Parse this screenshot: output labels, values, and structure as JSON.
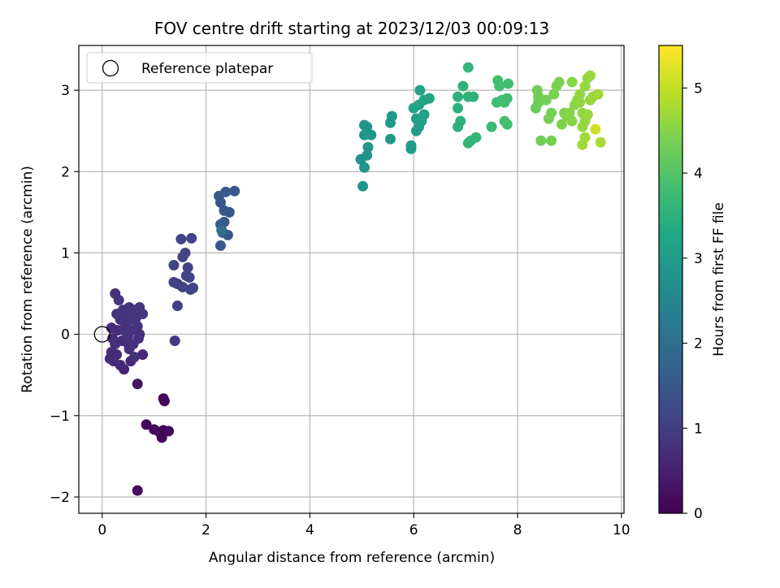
{
  "chart_data": {
    "type": "scatter",
    "title": "FOV centre drift starting at 2023/12/03 00:09:13",
    "xlabel": "Angular distance from reference (arcmin)",
    "ylabel": "Rotation from reference (arcmin)",
    "xlim": [
      -0.45,
      10.05
    ],
    "ylim": [
      -2.2,
      3.55
    ],
    "xticks": [
      0,
      2,
      4,
      6,
      8,
      10
    ],
    "xtick_labels": [
      "0",
      "2",
      "4",
      "6",
      "8",
      "10"
    ],
    "yticks": [
      -2,
      -1,
      0,
      1,
      2,
      3
    ],
    "ytick_labels": [
      "−2",
      "−1",
      "0",
      "1",
      "2",
      "3"
    ],
    "grid": true,
    "legend": {
      "position": "top-left",
      "entries": [
        "Reference platepar"
      ]
    },
    "reference_point": {
      "x": 0,
      "y": 0
    },
    "colorbar": {
      "label": "Hours from first FF file",
      "colormap": "viridis",
      "range": [
        0,
        5.5
      ],
      "ticks": [
        0,
        1,
        2,
        3,
        4,
        5
      ],
      "tick_labels": [
        "0",
        "1",
        "2",
        "3",
        "4",
        "5"
      ]
    },
    "points": [
      {
        "x": 0.68,
        "y": -1.92,
        "c": 0.15
      },
      {
        "x": 0.85,
        "y": -1.11,
        "c": 0.1
      },
      {
        "x": 1.0,
        "y": -1.17,
        "c": 0.1
      },
      {
        "x": 1.1,
        "y": -1.2,
        "c": 0.12
      },
      {
        "x": 1.15,
        "y": -1.27,
        "c": 0.1
      },
      {
        "x": 1.18,
        "y": -1.18,
        "c": 0.1
      },
      {
        "x": 1.28,
        "y": -1.19,
        "c": 0.12
      },
      {
        "x": 1.18,
        "y": -0.79,
        "c": 0.1
      },
      {
        "x": 1.2,
        "y": -0.82,
        "c": 0.12
      },
      {
        "x": 0.68,
        "y": -0.61,
        "c": 0.3
      },
      {
        "x": 0.78,
        "y": -0.25,
        "c": 0.55
      },
      {
        "x": 0.55,
        "y": -0.33,
        "c": 0.55
      },
      {
        "x": 0.42,
        "y": -0.43,
        "c": 0.55
      },
      {
        "x": 0.35,
        "y": -0.38,
        "c": 0.6
      },
      {
        "x": 0.22,
        "y": -0.33,
        "c": 0.6
      },
      {
        "x": 0.28,
        "y": -0.25,
        "c": 0.65
      },
      {
        "x": 0.18,
        "y": -0.22,
        "c": 0.65
      },
      {
        "x": 0.2,
        "y": -0.05,
        "c": 0.7
      },
      {
        "x": 0.18,
        "y": 0.08,
        "c": 0.7
      },
      {
        "x": 0.3,
        "y": 0.05,
        "c": 0.7
      },
      {
        "x": 0.38,
        "y": -0.08,
        "c": 0.7
      },
      {
        "x": 0.48,
        "y": -0.1,
        "c": 0.75
      },
      {
        "x": 0.52,
        "y": -0.18,
        "c": 0.75
      },
      {
        "x": 0.62,
        "y": -0.28,
        "c": 0.75
      },
      {
        "x": 0.7,
        "y": -0.05,
        "c": 0.75
      },
      {
        "x": 0.72,
        "y": 0.0,
        "c": 0.75
      },
      {
        "x": 0.58,
        "y": 0.05,
        "c": 0.8
      },
      {
        "x": 0.45,
        "y": 0.12,
        "c": 0.8
      },
      {
        "x": 0.35,
        "y": 0.18,
        "c": 0.8
      },
      {
        "x": 0.28,
        "y": 0.25,
        "c": 0.8
      },
      {
        "x": 0.4,
        "y": 0.3,
        "c": 0.8
      },
      {
        "x": 0.52,
        "y": 0.33,
        "c": 0.85
      },
      {
        "x": 0.6,
        "y": 0.3,
        "c": 0.85
      },
      {
        "x": 0.65,
        "y": 0.2,
        "c": 0.85
      },
      {
        "x": 0.72,
        "y": 0.33,
        "c": 0.85
      },
      {
        "x": 0.78,
        "y": 0.25,
        "c": 0.85
      },
      {
        "x": 0.68,
        "y": 0.1,
        "c": 0.85
      },
      {
        "x": 0.55,
        "y": 0.18,
        "c": 0.85
      },
      {
        "x": 0.32,
        "y": 0.42,
        "c": 0.8
      },
      {
        "x": 0.25,
        "y": 0.5,
        "c": 0.75
      },
      {
        "x": 0.42,
        "y": 0.05,
        "c": 0.8
      },
      {
        "x": 0.5,
        "y": -0.02,
        "c": 0.8
      },
      {
        "x": 0.6,
        "y": -0.12,
        "c": 0.8
      },
      {
        "x": 0.25,
        "y": -0.12,
        "c": 0.75
      },
      {
        "x": 0.15,
        "y": -0.3,
        "c": 0.7
      },
      {
        "x": 0.45,
        "y": 0.22,
        "c": 0.85
      },
      {
        "x": 1.4,
        "y": -0.08,
        "c": 0.95
      },
      {
        "x": 1.45,
        "y": 0.35,
        "c": 1.05
      },
      {
        "x": 1.38,
        "y": 0.64,
        "c": 1.05
      },
      {
        "x": 1.45,
        "y": 0.62,
        "c": 1.05
      },
      {
        "x": 1.38,
        "y": 0.85,
        "c": 1.1
      },
      {
        "x": 1.55,
        "y": 0.95,
        "c": 1.1
      },
      {
        "x": 1.6,
        "y": 1.0,
        "c": 1.1
      },
      {
        "x": 1.65,
        "y": 0.82,
        "c": 1.1
      },
      {
        "x": 1.62,
        "y": 0.72,
        "c": 1.1
      },
      {
        "x": 1.68,
        "y": 0.7,
        "c": 1.1
      },
      {
        "x": 1.55,
        "y": 0.58,
        "c": 1.1
      },
      {
        "x": 1.7,
        "y": 0.55,
        "c": 1.1
      },
      {
        "x": 1.75,
        "y": 0.57,
        "c": 1.1
      },
      {
        "x": 1.52,
        "y": 1.17,
        "c": 1.1
      },
      {
        "x": 1.72,
        "y": 1.18,
        "c": 1.1
      },
      {
        "x": 2.28,
        "y": 1.09,
        "c": 1.5
      },
      {
        "x": 2.28,
        "y": 1.35,
        "c": 1.55
      },
      {
        "x": 2.32,
        "y": 1.25,
        "c": 1.6
      },
      {
        "x": 2.42,
        "y": 1.22,
        "c": 1.5
      },
      {
        "x": 2.35,
        "y": 1.38,
        "c": 1.55
      },
      {
        "x": 2.3,
        "y": 1.28,
        "c": 2.0
      },
      {
        "x": 2.28,
        "y": 1.62,
        "c": 1.5
      },
      {
        "x": 2.25,
        "y": 1.7,
        "c": 1.5
      },
      {
        "x": 2.38,
        "y": 1.75,
        "c": 1.55
      },
      {
        "x": 2.55,
        "y": 1.76,
        "c": 1.55
      },
      {
        "x": 2.35,
        "y": 1.52,
        "c": 1.5
      },
      {
        "x": 2.45,
        "y": 1.5,
        "c": 1.5
      },
      {
        "x": 5.02,
        "y": 1.82,
        "c": 2.85
      },
      {
        "x": 4.98,
        "y": 2.15,
        "c": 2.85
      },
      {
        "x": 5.05,
        "y": 2.05,
        "c": 2.85
      },
      {
        "x": 5.1,
        "y": 2.2,
        "c": 2.85
      },
      {
        "x": 5.12,
        "y": 2.3,
        "c": 2.85
      },
      {
        "x": 5.05,
        "y": 2.45,
        "c": 2.85
      },
      {
        "x": 5.1,
        "y": 2.55,
        "c": 2.85
      },
      {
        "x": 5.18,
        "y": 2.45,
        "c": 2.85
      },
      {
        "x": 5.05,
        "y": 2.57,
        "c": 2.85
      },
      {
        "x": 5.55,
        "y": 2.4,
        "c": 2.95
      },
      {
        "x": 5.55,
        "y": 2.6,
        "c": 2.95
      },
      {
        "x": 5.58,
        "y": 2.68,
        "c": 2.95
      },
      {
        "x": 5.95,
        "y": 2.28,
        "c": 3.0
      },
      {
        "x": 5.95,
        "y": 2.32,
        "c": 3.0
      },
      {
        "x": 6.05,
        "y": 2.5,
        "c": 3.05
      },
      {
        "x": 6.1,
        "y": 2.55,
        "c": 3.05
      },
      {
        "x": 6.15,
        "y": 2.62,
        "c": 3.1
      },
      {
        "x": 6.05,
        "y": 2.65,
        "c": 3.1
      },
      {
        "x": 6.2,
        "y": 2.7,
        "c": 3.15
      },
      {
        "x": 6.0,
        "y": 2.78,
        "c": 3.15
      },
      {
        "x": 6.1,
        "y": 2.82,
        "c": 3.15
      },
      {
        "x": 6.2,
        "y": 2.88,
        "c": 3.15
      },
      {
        "x": 6.3,
        "y": 2.9,
        "c": 3.2
      },
      {
        "x": 6.12,
        "y": 3.0,
        "c": 3.2
      },
      {
        "x": 6.85,
        "y": 2.55,
        "c": 3.5
      },
      {
        "x": 6.9,
        "y": 2.62,
        "c": 3.5
      },
      {
        "x": 6.85,
        "y": 2.78,
        "c": 3.5
      },
      {
        "x": 6.85,
        "y": 2.92,
        "c": 3.5
      },
      {
        "x": 6.95,
        "y": 3.05,
        "c": 3.55
      },
      {
        "x": 7.05,
        "y": 3.28,
        "c": 3.6
      },
      {
        "x": 7.05,
        "y": 2.92,
        "c": 3.55
      },
      {
        "x": 7.15,
        "y": 2.92,
        "c": 3.55
      },
      {
        "x": 7.05,
        "y": 2.35,
        "c": 3.6
      },
      {
        "x": 7.1,
        "y": 2.38,
        "c": 3.6
      },
      {
        "x": 7.2,
        "y": 2.42,
        "c": 3.6
      },
      {
        "x": 7.5,
        "y": 2.55,
        "c": 3.7
      },
      {
        "x": 7.6,
        "y": 2.85,
        "c": 3.75
      },
      {
        "x": 7.65,
        "y": 3.05,
        "c": 3.8
      },
      {
        "x": 7.62,
        "y": 3.12,
        "c": 3.8
      },
      {
        "x": 7.75,
        "y": 2.85,
        "c": 3.8
      },
      {
        "x": 7.8,
        "y": 2.9,
        "c": 3.8
      },
      {
        "x": 7.82,
        "y": 3.08,
        "c": 3.8
      },
      {
        "x": 7.75,
        "y": 2.62,
        "c": 3.85
      },
      {
        "x": 7.8,
        "y": 2.58,
        "c": 3.85
      },
      {
        "x": 7.7,
        "y": 2.88,
        "c": 3.8
      },
      {
        "x": 8.35,
        "y": 2.78,
        "c": 4.25
      },
      {
        "x": 8.4,
        "y": 2.85,
        "c": 4.25
      },
      {
        "x": 8.4,
        "y": 2.92,
        "c": 4.3
      },
      {
        "x": 8.38,
        "y": 3.0,
        "c": 4.3
      },
      {
        "x": 8.45,
        "y": 2.38,
        "c": 4.3
      },
      {
        "x": 8.55,
        "y": 2.88,
        "c": 4.35
      },
      {
        "x": 8.6,
        "y": 2.65,
        "c": 4.35
      },
      {
        "x": 8.65,
        "y": 2.72,
        "c": 4.35
      },
      {
        "x": 8.65,
        "y": 2.38,
        "c": 4.35
      },
      {
        "x": 8.7,
        "y": 2.95,
        "c": 4.4
      },
      {
        "x": 8.75,
        "y": 3.05,
        "c": 4.4
      },
      {
        "x": 8.8,
        "y": 3.1,
        "c": 4.4
      },
      {
        "x": 8.85,
        "y": 2.58,
        "c": 4.45
      },
      {
        "x": 8.9,
        "y": 2.72,
        "c": 4.45
      },
      {
        "x": 8.95,
        "y": 2.68,
        "c": 4.45
      },
      {
        "x": 9.0,
        "y": 2.72,
        "c": 4.5
      },
      {
        "x": 9.05,
        "y": 2.62,
        "c": 4.5
      },
      {
        "x": 9.05,
        "y": 3.1,
        "c": 4.5
      },
      {
        "x": 9.1,
        "y": 2.82,
        "c": 4.55
      },
      {
        "x": 9.15,
        "y": 2.88,
        "c": 4.55
      },
      {
        "x": 9.2,
        "y": 2.95,
        "c": 4.6
      },
      {
        "x": 9.25,
        "y": 2.72,
        "c": 4.6
      },
      {
        "x": 9.25,
        "y": 2.55,
        "c": 4.6
      },
      {
        "x": 9.3,
        "y": 2.62,
        "c": 4.6
      },
      {
        "x": 9.25,
        "y": 2.33,
        "c": 4.7
      },
      {
        "x": 9.3,
        "y": 2.42,
        "c": 4.7
      },
      {
        "x": 9.3,
        "y": 3.05,
        "c": 4.6
      },
      {
        "x": 9.35,
        "y": 3.15,
        "c": 4.6
      },
      {
        "x": 9.4,
        "y": 3.18,
        "c": 4.65
      },
      {
        "x": 9.4,
        "y": 2.88,
        "c": 4.65
      },
      {
        "x": 9.45,
        "y": 2.92,
        "c": 4.65
      },
      {
        "x": 9.5,
        "y": 2.52,
        "c": 5.1
      },
      {
        "x": 9.55,
        "y": 2.95,
        "c": 4.7
      },
      {
        "x": 9.6,
        "y": 2.36,
        "c": 4.8
      },
      {
        "x": 9.2,
        "y": 2.85,
        "c": 4.6
      },
      {
        "x": 9.35,
        "y": 2.7,
        "c": 4.65
      }
    ]
  }
}
